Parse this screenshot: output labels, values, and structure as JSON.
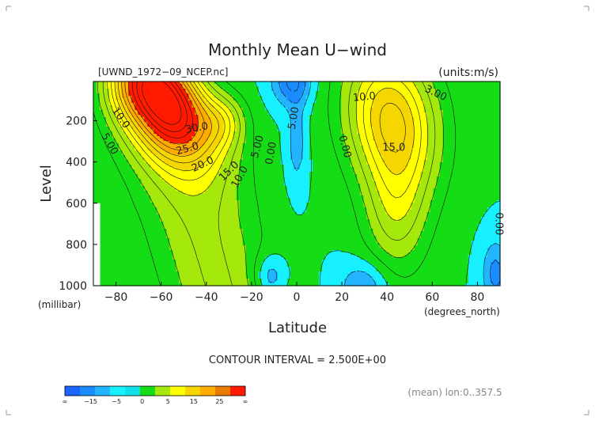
{
  "chart_data": {
    "type": "contour",
    "title": "Monthly Mean U−wind",
    "file_label": "[UWND_1972−09_NCEP.nc]",
    "units_label": "(units:m/s)",
    "ylabel": "Level",
    "ylabel_unit": "(millibar)",
    "xlabel": "Latitude",
    "xlabel_unit": "(degrees_north)",
    "xlim": [
      -90,
      90
    ],
    "ylim": [
      1000,
      10
    ],
    "x_ticks": [
      {
        "value": -80,
        "label": "−80"
      },
      {
        "value": -60,
        "label": "−60"
      },
      {
        "value": -40,
        "label": "−40"
      },
      {
        "value": -20,
        "label": "−20"
      },
      {
        "value": 0,
        "label": "0"
      },
      {
        "value": 20,
        "label": "20"
      },
      {
        "value": 40,
        "label": "40"
      },
      {
        "value": 60,
        "label": "60"
      },
      {
        "value": 80,
        "label": "80"
      }
    ],
    "y_ticks": [
      {
        "value": 200,
        "label": "200"
      },
      {
        "value": 400,
        "label": "400"
      },
      {
        "value": 600,
        "label": "600"
      },
      {
        "value": 800,
        "label": "800"
      },
      {
        "value": 1000,
        "label": "1000"
      }
    ],
    "contour_interval_text": "CONTOUR INTERVAL = 2.500E+00",
    "contour_labels": [
      {
        "lat": -79,
        "lev": 195,
        "text": "10.0",
        "rot": 55
      },
      {
        "lat": -84,
        "lev": 320,
        "text": "5.00",
        "rot": 60
      },
      {
        "lat": -44,
        "lev": 250,
        "text": "30.0",
        "rot": -10
      },
      {
        "lat": -48,
        "lev": 350,
        "text": "25.0",
        "rot": -15
      },
      {
        "lat": -41,
        "lev": 425,
        "text": "20.0",
        "rot": -25
      },
      {
        "lat": -29,
        "lev": 455,
        "text": "15.0",
        "rot": -45
      },
      {
        "lat": -24,
        "lev": 480,
        "text": "10.0",
        "rot": -60
      },
      {
        "lat": -16,
        "lev": 330,
        "text": "5.00",
        "rot": -75
      },
      {
        "lat": -10,
        "lev": 360,
        "text": "0.00",
        "rot": -80
      },
      {
        "lat": 0,
        "lev": 190,
        "text": "5.00",
        "rot": -80
      },
      {
        "lat": 20,
        "lev": 330,
        "text": "0.00",
        "rot": 75
      },
      {
        "lat": 30,
        "lev": 100,
        "text": "10.0",
        "rot": -5
      },
      {
        "lat": 61,
        "lev": 80,
        "text": "3.00",
        "rot": 25
      },
      {
        "lat": 43,
        "lev": 345,
        "text": "15.0",
        "rot": 0
      },
      {
        "lat": 88,
        "lev": 700,
        "text": "0.00",
        "rot": 90
      }
    ],
    "colorbar": {
      "bins": [
        "#1a64ff",
        "#1b8cff",
        "#22b4ff",
        "#17f0ff",
        "#11e2e9",
        "#15dd15",
        "#a5e80b",
        "#ffff00",
        "#f5d600",
        "#ffab00",
        "#e87a00",
        "#ff1a00"
      ],
      "tick_labels": [
        "∞",
        "−15",
        "−5",
        "0",
        "5",
        "15",
        "25",
        "∞"
      ]
    },
    "footer_note": "(mean) lon:0..357.5"
  }
}
